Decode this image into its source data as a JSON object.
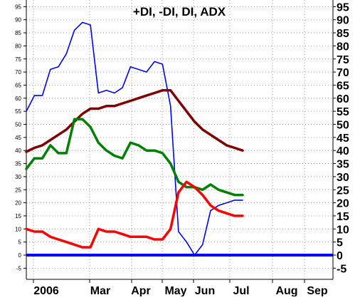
{
  "chart_data": {
    "type": "line",
    "title": "+DI, -DI, DI, ADX",
    "ylim": [
      -7,
      97
    ],
    "left_ticks": [
      95,
      90,
      85,
      80,
      75,
      70,
      65,
      60,
      55,
      50,
      45,
      40,
      35,
      30,
      25,
      20,
      15,
      10,
      5,
      0,
      -5
    ],
    "right_ticks": [
      95,
      90,
      85,
      80,
      75,
      70,
      65,
      60,
      55,
      50,
      45,
      40,
      35,
      30,
      25,
      20,
      15,
      10,
      5,
      0,
      -5
    ],
    "x_labels": [
      "2006",
      "Mar",
      "Apr",
      "May",
      "Jun",
      "Jul",
      "Aug",
      "Sep"
    ],
    "grid": true,
    "colors": {
      "di_blue": "#0000ff",
      "adx_brown": "#800000",
      "plus_di_green": "#008000",
      "minus_di_red": "#ff0000",
      "zero_line": "#0000ff",
      "grid": "#a0a0a0"
    },
    "series": [
      {
        "color_key": "di_blue",
        "values": [
          55,
          61,
          61,
          71,
          72,
          77,
          86,
          89,
          88,
          62,
          63,
          62,
          64,
          72,
          71,
          70,
          74,
          73,
          57,
          9,
          5,
          0,
          4,
          17,
          19,
          20,
          21,
          21
        ]
      },
      {
        "color_key": "adx_brown",
        "values": [
          39.5,
          41,
          42,
          44,
          46,
          48,
          51,
          54,
          56,
          56,
          57,
          57,
          58,
          59,
          60,
          61,
          62,
          63,
          63,
          59,
          55,
          51,
          48,
          46,
          44,
          42,
          41,
          40
        ]
      },
      {
        "color_key": "plus_di_green",
        "values": [
          33,
          37,
          37,
          42,
          39,
          39,
          52,
          52,
          49,
          43,
          40,
          38,
          37,
          43,
          42,
          40,
          40,
          39,
          35,
          28,
          26,
          26,
          25,
          27,
          25,
          24,
          23,
          23
        ]
      },
      {
        "color_key": "minus_di_red",
        "values": [
          10,
          9,
          9,
          7,
          6,
          5,
          4,
          3,
          3,
          10,
          9,
          9,
          8,
          7,
          7,
          7,
          6,
          6,
          10,
          24,
          28,
          26,
          23,
          19,
          17,
          16,
          15,
          15
        ]
      }
    ]
  }
}
